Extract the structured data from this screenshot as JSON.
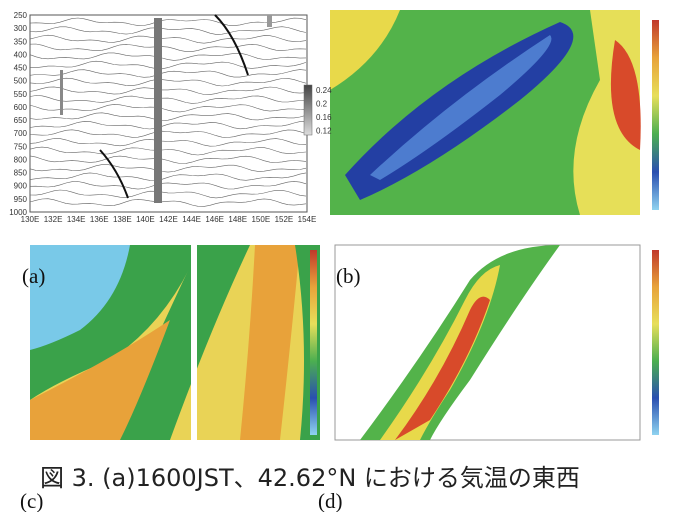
{
  "figure": {
    "panels": [
      {
        "label": "(a)",
        "y_ticks": [
          "250",
          "300",
          "350",
          "400",
          "450",
          "500",
          "550",
          "600",
          "650",
          "700",
          "750",
          "800",
          "850",
          "900",
          "950",
          "1000"
        ],
        "x_ticks": [
          "130E",
          "132E",
          "134E",
          "136E",
          "138E",
          "140E",
          "142E",
          "144E",
          "146E",
          "148E",
          "150E",
          "152E",
          "154E"
        ],
        "colorbar": [
          "0.24",
          "0.2",
          "0.16",
          "0.12"
        ]
      },
      {
        "label": "(b)"
      },
      {
        "label": "(c)"
      },
      {
        "label": "(d)"
      }
    ],
    "caption": "図 3. (a)1600JST、42.62°N における気温の東西"
  }
}
